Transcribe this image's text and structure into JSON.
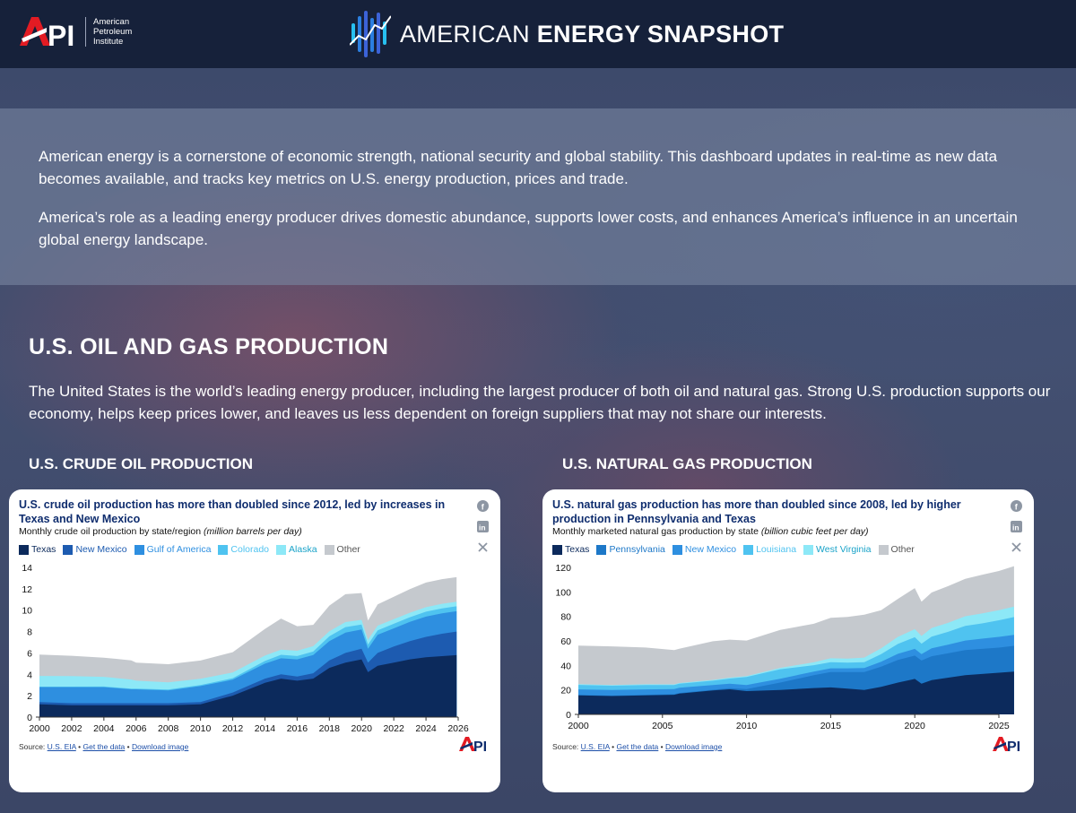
{
  "header": {
    "org_line1": "American",
    "org_line2": "Petroleum",
    "org_line3": "Institute",
    "title_light": "AMERICAN",
    "title_bold": "ENERGY SNAPSHOT"
  },
  "intro": {
    "p1": "American energy is a cornerstone of economic strength, national security and global stability. This dashboard updates in real-time as new data becomes available, and tracks key metrics on U.S. energy production, prices and trade.",
    "p2": "America’s role as a leading energy producer drives domestic abundance, supports lower costs, and enhances America’s influence in an uncertain global energy landscape."
  },
  "section": {
    "title": "U.S. OIL AND GAS PRODUCTION",
    "lead": "The United States is the world’s leading energy producer, including the largest producer of both oil and natural gas. Strong U.S. production supports our economy, helps keep prices lower, and leaves us less dependent on foreign suppliers that may not share our interests."
  },
  "oil": {
    "heading": "U.S. CRUDE OIL PRODUCTION",
    "card_title": "U.S. crude oil production has more than doubled since 2012, led by increases in Texas and New Mexico",
    "subtitle": "Monthly crude oil production by state/region",
    "unit": "(million barrels per day)",
    "source_label": "Source:",
    "source_link": "U.S. EIA",
    "get_data": "Get the data",
    "download": "Download image"
  },
  "gas": {
    "heading": "U.S. NATURAL GAS PRODUCTION",
    "card_title": "U.S. natural gas production has more than doubled since 2008, led by higher production in Pennsylvania and Texas",
    "subtitle": "Monthly marketed natural gas production by state",
    "unit": "(billion cubic feet per day)",
    "source_label": "Source:",
    "source_link": "U.S. EIA",
    "get_data": "Get the data",
    "download": "Download image"
  },
  "icons": [
    "facebook-icon",
    "linkedin-icon",
    "x-icon"
  ],
  "colors": {
    "header_bg": "#16213a",
    "api_red": "#e31b23",
    "chart_title": "#0f2d6e"
  },
  "chart_data": [
    {
      "type": "area",
      "stacked": true,
      "title": "U.S. crude oil production has more than doubled since 2012, led by increases in Texas and New Mexico",
      "subtitle": "Monthly crude oil production by state/region",
      "ylabel": "(million barrels per day)",
      "ylim": [
        0,
        14
      ],
      "yticks": [
        0,
        2,
        4,
        6,
        8,
        10,
        12,
        14
      ],
      "xticks": [
        2000,
        2002,
        2004,
        2006,
        2008,
        2010,
        2012,
        2014,
        2016,
        2018,
        2020,
        2022,
        2024,
        2026
      ],
      "x": [
        2000,
        2002,
        2004,
        2005.7,
        2006,
        2008,
        2010,
        2012,
        2014,
        2015,
        2016,
        2017,
        2018,
        2019,
        2020,
        2020.4,
        2021,
        2022,
        2023,
        2024,
        2025,
        2025.9
      ],
      "series": [
        {
          "name": "Texas",
          "color": "#0c2a5c",
          "values": [
            1.2,
            1.1,
            1.1,
            1.1,
            1.1,
            1.1,
            1.2,
            2.0,
            3.2,
            3.6,
            3.4,
            3.6,
            4.6,
            5.1,
            5.4,
            4.2,
            4.8,
            5.1,
            5.4,
            5.6,
            5.7,
            5.8
          ]
        },
        {
          "name": "New Mexico",
          "color": "#1d5bb0",
          "values": [
            0.2,
            0.2,
            0.2,
            0.2,
            0.2,
            0.2,
            0.2,
            0.3,
            0.4,
            0.4,
            0.4,
            0.5,
            0.7,
            0.9,
            1.0,
            0.9,
            1.2,
            1.5,
            1.7,
            1.9,
            2.1,
            2.2
          ]
        },
        {
          "name": "Gulf of America",
          "color": "#2e8fe0",
          "values": [
            1.4,
            1.5,
            1.5,
            1.3,
            1.3,
            1.2,
            1.5,
            1.2,
            1.4,
            1.5,
            1.6,
            1.7,
            1.8,
            1.9,
            1.8,
            1.3,
            1.7,
            1.7,
            1.8,
            1.9,
            1.9,
            1.9
          ]
        },
        {
          "name": "Colorado",
          "color": "#4fc3f0",
          "values": [
            0.05,
            0.05,
            0.06,
            0.06,
            0.06,
            0.07,
            0.09,
            0.14,
            0.25,
            0.33,
            0.31,
            0.33,
            0.45,
            0.52,
            0.45,
            0.38,
            0.41,
            0.43,
            0.44,
            0.46,
            0.47,
            0.46
          ]
        },
        {
          "name": "Alaska",
          "color": "#8de8f7",
          "values": [
            1.0,
            0.98,
            0.9,
            0.85,
            0.74,
            0.68,
            0.6,
            0.53,
            0.5,
            0.48,
            0.49,
            0.5,
            0.48,
            0.47,
            0.45,
            0.45,
            0.44,
            0.43,
            0.42,
            0.42,
            0.43,
            0.43
          ]
        },
        {
          "name": "Other",
          "color": "#c5c9ce",
          "values": [
            2.0,
            1.9,
            1.8,
            1.8,
            1.7,
            1.7,
            1.7,
            1.9,
            2.5,
            2.9,
            2.3,
            2.0,
            2.4,
            2.6,
            2.5,
            1.8,
            2.0,
            2.1,
            2.2,
            2.3,
            2.3,
            2.3
          ]
        }
      ]
    },
    {
      "type": "area",
      "stacked": true,
      "title": "U.S. natural gas production has more than doubled since 2008, led by higher production in Pennsylvania and Texas",
      "subtitle": "Monthly marketed natural gas production by state",
      "ylabel": "(billion cubic feet per day)",
      "ylim": [
        0,
        120
      ],
      "yticks": [
        0,
        20,
        40,
        60,
        80,
        100,
        120
      ],
      "xticks": [
        2000,
        2005,
        2010,
        2015,
        2020,
        2025
      ],
      "x": [
        2000,
        2002,
        2004,
        2005.7,
        2006,
        2008,
        2009,
        2010,
        2012,
        2014,
        2015,
        2016,
        2017,
        2018,
        2019,
        2020,
        2020.4,
        2021,
        2022,
        2023,
        2024,
        2025,
        2025.9
      ],
      "series": [
        {
          "name": "Texas",
          "color": "#0c2a5c",
          "values": [
            15.5,
            15.0,
            15.5,
            16,
            17,
            19.5,
            20.5,
            19,
            20,
            21.5,
            22,
            21,
            20,
            22.5,
            26,
            29,
            25,
            28,
            30,
            32,
            33,
            34,
            35
          ]
        },
        {
          "name": "Pennsylvania",
          "color": "#1d78c8",
          "values": [
            0.4,
            0.4,
            0.5,
            0.5,
            0.5,
            0.6,
            0.9,
            1.6,
            6.0,
            10.5,
            12.5,
            13.5,
            14.5,
            16.5,
            18.5,
            19.0,
            19,
            19.5,
            20,
            20.5,
            20.5,
            20.5,
            21
          ]
        },
        {
          "name": "New Mexico",
          "color": "#2e8fe0",
          "values": [
            4.5,
            4.5,
            4.4,
            4.2,
            4.2,
            3.9,
            3.6,
            3.4,
            3.1,
            3.0,
            3.1,
            3.1,
            3.3,
            4.0,
            5.0,
            5.5,
            5.2,
            6.5,
            7.0,
            7.8,
            8.3,
            8.8,
            9.0
          ]
        },
        {
          "name": "Louisiana",
          "color": "#4fc3f0",
          "values": [
            3.7,
            3.5,
            3.6,
            3.2,
            3.3,
            3.5,
            4.3,
            6.5,
            7.8,
            5.2,
            5.0,
            4.6,
            4.8,
            6.2,
            8.0,
            9.5,
            8.5,
            9.5,
            10.5,
            12.0,
            12.5,
            13.5,
            14.5
          ]
        },
        {
          "name": "West Virginia",
          "color": "#8de8f7",
          "values": [
            0.6,
            0.6,
            0.6,
            0.6,
            0.6,
            0.7,
            0.7,
            0.8,
            1.1,
            2.3,
            3.2,
            3.4,
            3.8,
            4.8,
            5.8,
            6.6,
            6.3,
            7.0,
            7.3,
            7.8,
            8.1,
            8.3,
            8.5
          ]
        },
        {
          "name": "Other",
          "color": "#c5c9ce",
          "values": [
            31.5,
            31.5,
            30,
            28,
            28,
            31.5,
            31,
            29,
            31,
            31.5,
            33,
            34,
            35,
            31,
            31,
            33.5,
            28,
            29,
            30,
            30.5,
            31.5,
            32,
            33
          ]
        }
      ]
    }
  ]
}
